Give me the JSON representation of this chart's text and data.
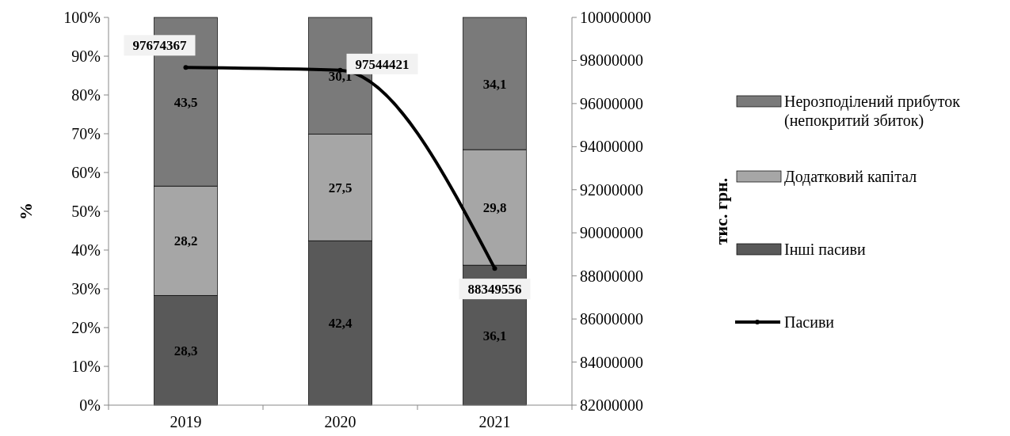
{
  "chart_data": {
    "type": "bar",
    "stacked": true,
    "categories": [
      "2019",
      "2020",
      "2021"
    ],
    "ylabel": "%",
    "y2label": "тис. грн.",
    "ylim": [
      0,
      100
    ],
    "yticks": [
      {
        "value": 0,
        "label": "0%"
      },
      {
        "value": 10,
        "label": "10%"
      },
      {
        "value": 20,
        "label": "20%"
      },
      {
        "value": 30,
        "label": "30%"
      },
      {
        "value": 40,
        "label": "40%"
      },
      {
        "value": 50,
        "label": "50%"
      },
      {
        "value": 60,
        "label": "60%"
      },
      {
        "value": 70,
        "label": "70%"
      },
      {
        "value": 80,
        "label": "80%"
      },
      {
        "value": 90,
        "label": "90%"
      },
      {
        "value": 100,
        "label": "100%"
      }
    ],
    "y2lim": [
      82000000,
      100000000
    ],
    "y2ticks": [
      82000000,
      84000000,
      86000000,
      88000000,
      90000000,
      92000000,
      94000000,
      96000000,
      98000000,
      100000000
    ],
    "legend": "right",
    "grid": false,
    "series": [
      {
        "name": "Інші пасиви",
        "color": "#595959",
        "values": [
          28.3,
          42.4,
          36.1
        ],
        "value_labels": [
          "28,3",
          "42,4",
          "36,1"
        ]
      },
      {
        "name": "Додатковий капітал",
        "color": "#a6a6a6",
        "values": [
          28.2,
          27.5,
          29.8
        ],
        "value_labels": [
          "28,2",
          "27,5",
          "29,8"
        ]
      },
      {
        "name": "Нерозподілений прибуток (непокритий збиток)",
        "color": "#7a7a7a",
        "values": [
          43.5,
          30.1,
          34.1
        ],
        "value_labels": [
          "43,5",
          "30,1",
          "34,1"
        ]
      },
      {
        "name": "Пасиви",
        "type": "line",
        "axis": "y2",
        "color": "#000000",
        "marker": "circle",
        "line_style": "solid",
        "values": [
          97674367,
          97544421,
          88349556
        ],
        "value_labels": [
          "97674367",
          "97544421",
          "88349556"
        ]
      }
    ]
  }
}
